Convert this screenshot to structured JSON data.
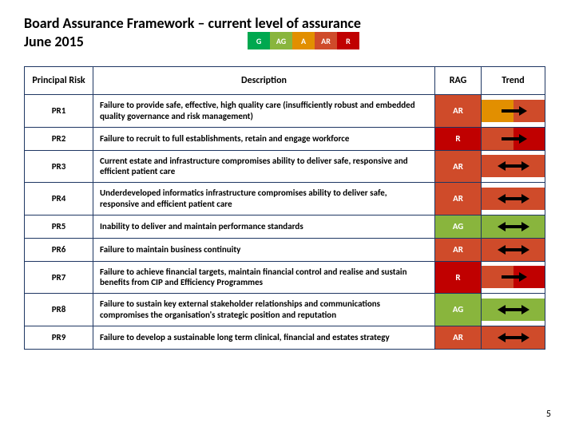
{
  "title_line1": "Board Assurance Framework – current level of assurance",
  "title_line2": "June 2015",
  "page_number": "5",
  "colors": {
    "G": "#00a84f",
    "AG": "#89b53d",
    "A": "#e28f00",
    "AR": "#cf4b2a",
    "R": "#c00000",
    "arrow": "#000000",
    "border": "#1f3763"
  },
  "legend": [
    {
      "code": "G",
      "color": "#00a84f"
    },
    {
      "code": "AG",
      "color": "#89b53d"
    },
    {
      "code": "A",
      "color": "#e28f00"
    },
    {
      "code": "AR",
      "color": "#cf4b2a"
    },
    {
      "code": "R",
      "color": "#c00000"
    }
  ],
  "columns": {
    "risk": "Principal Risk",
    "desc": "Description",
    "rag": "RAG",
    "trend": "Trend"
  },
  "rows": [
    {
      "id": "PR1",
      "desc": "Failure to provide safe, effective, high quality care (insufficiently robust and embedded quality governance and risk management)",
      "rag": "AR",
      "trend_left_color": "#e28f00",
      "trend_right_color": "#cf4b2a",
      "arrow_dir": "right"
    },
    {
      "id": "PR2",
      "desc": "Failure to recruit to full establishments, retain and engage workforce",
      "rag": "R",
      "trend_left_color": "#cf4b2a",
      "trend_right_color": "#c00000",
      "arrow_dir": "right"
    },
    {
      "id": "PR3",
      "desc": "Current estate and infrastructure compromises ability to deliver safe, responsive and efficient patient care",
      "rag": "AR",
      "trend_left_color": "#cf4b2a",
      "trend_right_color": "#cf4b2a",
      "arrow_dir": "leftright"
    },
    {
      "id": "PR4",
      "desc": "Underdeveloped informatics infrastructure compromises ability to deliver safe, responsive and efficient patient care",
      "rag": "AR",
      "trend_left_color": "#cf4b2a",
      "trend_right_color": "#cf4b2a",
      "arrow_dir": "leftright"
    },
    {
      "id": "PR5",
      "desc": "Inability to deliver and maintain performance standards",
      "rag": "AG",
      "trend_left_color": "#89b53d",
      "trend_right_color": "#89b53d",
      "arrow_dir": "leftright"
    },
    {
      "id": "PR6",
      "desc": "Failure to maintain business continuity",
      "rag": "AR",
      "trend_left_color": "#cf4b2a",
      "trend_right_color": "#cf4b2a",
      "arrow_dir": "leftright"
    },
    {
      "id": "PR7",
      "desc": "Failure to achieve financial targets, maintain financial control and realise and sustain benefits from CIP and Efficiency Programmes",
      "rag": "R",
      "trend_left_color": "#cf4b2a",
      "trend_right_color": "#c00000",
      "arrow_dir": "right"
    },
    {
      "id": "PR8",
      "desc": "Failure to sustain key external stakeholder relationships and communications compromises the organisation's strategic position and reputation",
      "rag": "AG",
      "trend_left_color": "#89b53d",
      "trend_right_color": "#89b53d",
      "arrow_dir": "leftright"
    },
    {
      "id": "PR9",
      "desc": "Failure to develop a sustainable long term clinical, financial and estates strategy",
      "rag": "AR",
      "trend_left_color": "#cf4b2a",
      "trend_right_color": "#cf4b2a",
      "arrow_dir": "leftright"
    }
  ]
}
